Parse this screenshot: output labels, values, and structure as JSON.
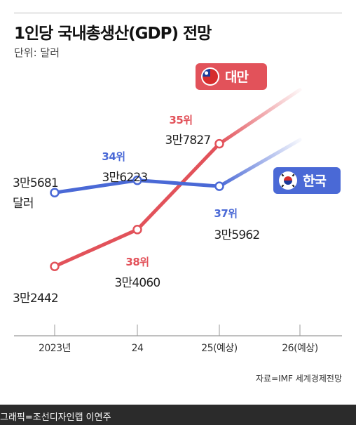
{
  "header": {
    "title": "1인당 국내총생산(GDP) 전망",
    "unit": "단위: 달러"
  },
  "footer": {
    "source": "자료=IMF 세계경제전망",
    "credit": "그래픽=조선디자인랩 이연주"
  },
  "colors": {
    "taiwan": "#e2525a",
    "korea": "#4a69d6",
    "axis": "#9a9a9a",
    "credit_bar": "#2b2b2b"
  },
  "chart_data": {
    "type": "line",
    "categories": [
      "2023년",
      "24",
      "25(예상)",
      "26(예상)"
    ],
    "ylim": [
      31000,
      40500
    ],
    "grid": false,
    "series": [
      {
        "key": "taiwan",
        "name": "대만",
        "values": [
          32442,
          34060,
          37827,
          40200
        ],
        "labels": [
          "3만2442",
          "3만4060",
          "3만7827",
          ""
        ],
        "ranks": [
          "",
          "38위",
          "35위",
          ""
        ],
        "projection_from": 2,
        "flag_icon": "taiwan-flag-icon"
      },
      {
        "key": "korea",
        "name": "한국",
        "values": [
          35681,
          36223,
          35962,
          38000
        ],
        "labels": [
          "3만5681\n달러",
          "3만6223",
          "3만5962",
          ""
        ],
        "ranks": [
          "",
          "34위",
          "37위",
          ""
        ],
        "projection_from": 2,
        "flag_icon": "korea-flag-icon"
      }
    ]
  }
}
